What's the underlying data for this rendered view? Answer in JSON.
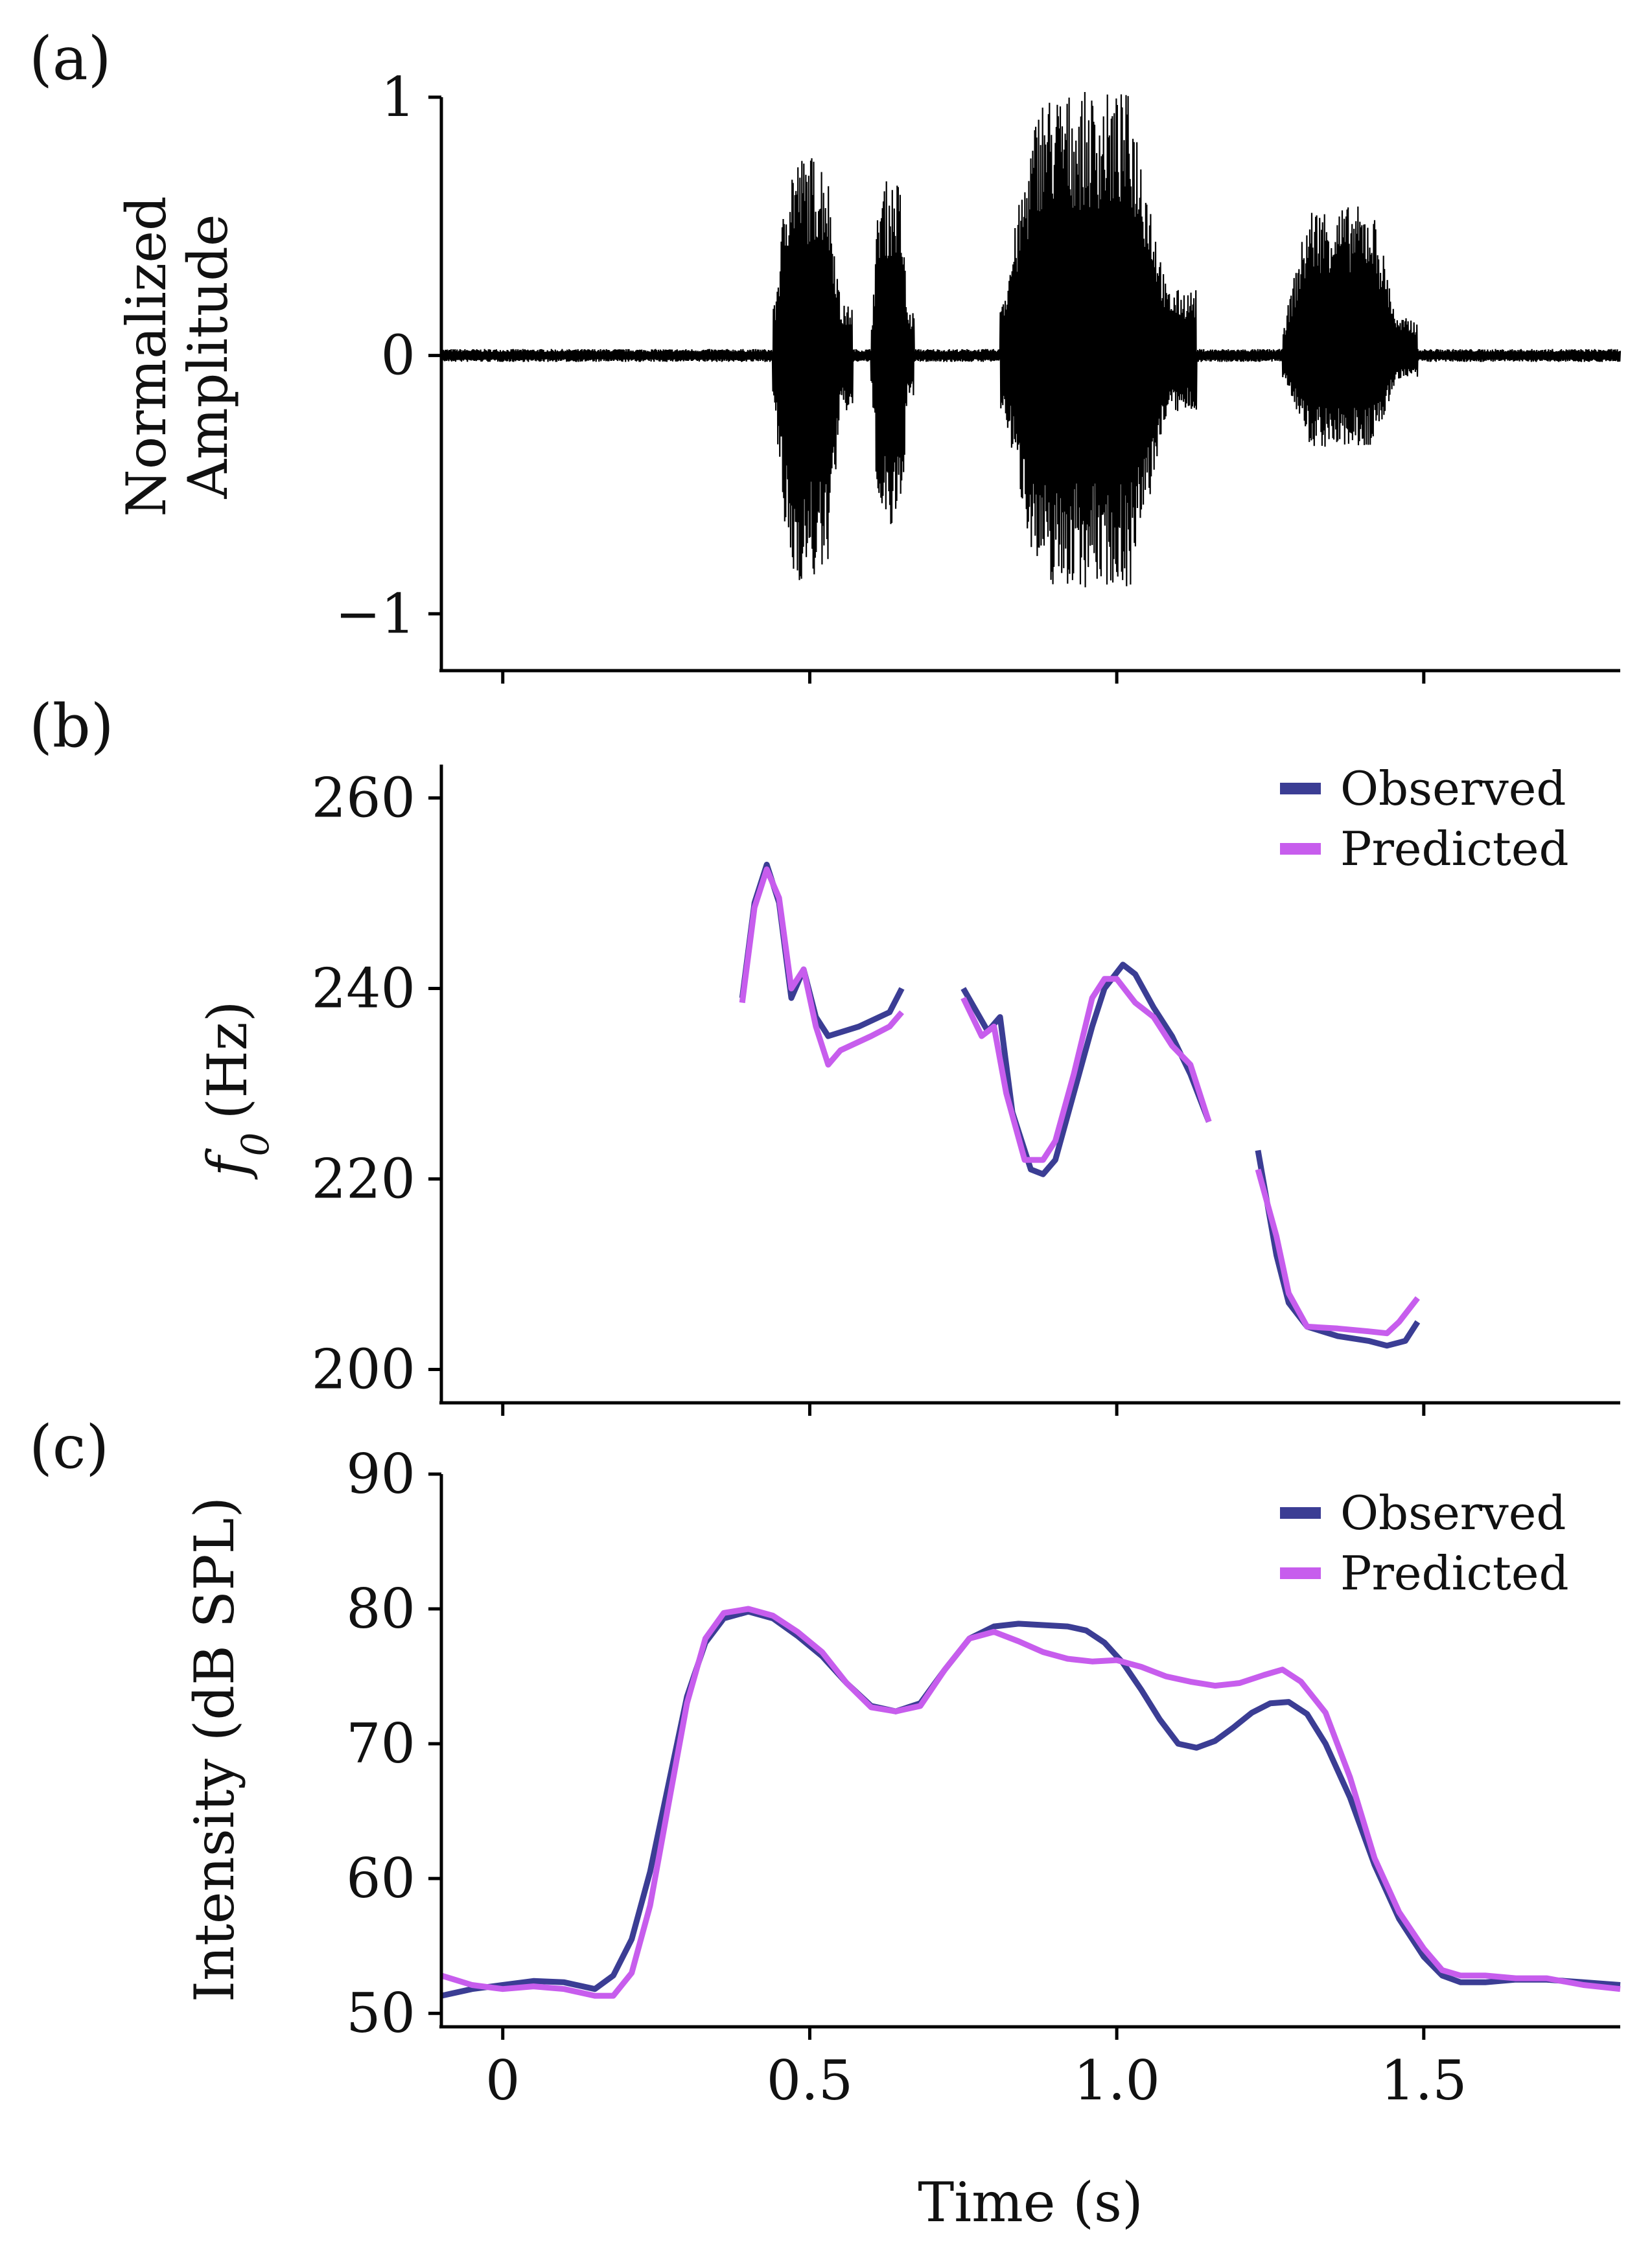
{
  "colors": {
    "observed": "#3b3d94",
    "predicted": "#c75ded",
    "waveform": "#000000",
    "axis": "#000000"
  },
  "chart_data": [
    {
      "panel": "(a)",
      "type": "line",
      "ylabel_line1": "Normalized",
      "ylabel_line2": "Amplitude",
      "xlim": [
        -0.1,
        1.82
      ],
      "ylim": [
        -1.22,
        1.0
      ],
      "yticks": [
        1,
        0,
        -1
      ],
      "ytick_labels": [
        "1",
        "0",
        "−1"
      ],
      "xticks": [
        0,
        0.5,
        1.0,
        1.5
      ],
      "segments": [
        {
          "t0": 0.44,
          "t1": 0.57,
          "peak_top": 0.78,
          "peak_bottom": -0.88
        },
        {
          "t0": 0.6,
          "t1": 0.67,
          "peak_top": 0.68,
          "peak_bottom": -0.7
        },
        {
          "t0": 0.81,
          "t1": 1.13,
          "peak_top": 1.02,
          "peak_bottom": -0.9
        },
        {
          "t0": 1.27,
          "t1": 1.49,
          "peak_top": 0.58,
          "peak_bottom": -0.36
        }
      ],
      "noise_level": 0.025
    },
    {
      "panel": "(b)",
      "type": "line",
      "ylabel": "(Hz)",
      "ylabel_symbol": "f",
      "ylabel_subscript": "0",
      "xlim": [
        -0.1,
        1.82
      ],
      "ylim": [
        196.5,
        263.5
      ],
      "yticks": [
        260,
        240,
        220,
        200
      ],
      "ytick_labels": [
        "260",
        "240",
        "220",
        "200"
      ],
      "xticks": [
        0,
        0.5,
        1.0,
        1.5
      ],
      "legend": [
        "Observed",
        "Predicted"
      ],
      "series": [
        {
          "name": "Observed",
          "segments": [
            [
              [
                0.39,
                239
              ],
              [
                0.41,
                249
              ],
              [
                0.43,
                253
              ],
              [
                0.45,
                249
              ],
              [
                0.47,
                239
              ],
              [
                0.49,
                242
              ],
              [
                0.51,
                237
              ],
              [
                0.53,
                235
              ],
              [
                0.58,
                236
              ],
              [
                0.63,
                237.5
              ],
              [
                0.65,
                240
              ]
            ],
            [
              [
                0.75,
                240
              ],
              [
                0.79,
                235.5
              ],
              [
                0.81,
                237
              ],
              [
                0.83,
                227
              ],
              [
                0.86,
                221
              ],
              [
                0.88,
                220.5
              ],
              [
                0.9,
                222
              ],
              [
                0.93,
                229
              ],
              [
                0.96,
                236
              ],
              [
                0.98,
                240
              ],
              [
                1.01,
                242.5
              ],
              [
                1.03,
                241.5
              ],
              [
                1.06,
                238
              ],
              [
                1.09,
                235
              ],
              [
                1.12,
                231
              ],
              [
                1.15,
                226
              ]
            ],
            [
              [
                1.23,
                223
              ],
              [
                1.26,
                212
              ],
              [
                1.28,
                207
              ],
              [
                1.31,
                204.5
              ],
              [
                1.36,
                203.5
              ],
              [
                1.41,
                203
              ],
              [
                1.44,
                202.5
              ],
              [
                1.47,
                203
              ],
              [
                1.49,
                205
              ]
            ]
          ]
        },
        {
          "name": "Predicted",
          "segments": [
            [
              [
                0.39,
                238.5
              ],
              [
                0.41,
                248.5
              ],
              [
                0.43,
                252.5
              ],
              [
                0.45,
                249.5
              ],
              [
                0.47,
                240
              ],
              [
                0.49,
                242
              ],
              [
                0.51,
                236
              ],
              [
                0.53,
                232
              ],
              [
                0.55,
                233.5
              ],
              [
                0.6,
                235
              ],
              [
                0.63,
                236
              ],
              [
                0.65,
                237.5
              ]
            ],
            [
              [
                0.75,
                239
              ],
              [
                0.78,
                235
              ],
              [
                0.8,
                236
              ],
              [
                0.82,
                229
              ],
              [
                0.85,
                222
              ],
              [
                0.88,
                222
              ],
              [
                0.9,
                224
              ],
              [
                0.93,
                231
              ],
              [
                0.96,
                239
              ],
              [
                0.98,
                241
              ],
              [
                1.0,
                241
              ],
              [
                1.03,
                238.5
              ],
              [
                1.06,
                237
              ],
              [
                1.09,
                234
              ],
              [
                1.12,
                232
              ],
              [
                1.15,
                226
              ]
            ],
            [
              [
                1.23,
                221
              ],
              [
                1.26,
                214
              ],
              [
                1.28,
                208
              ],
              [
                1.31,
                204.5
              ],
              [
                1.36,
                204.3
              ],
              [
                1.41,
                204
              ],
              [
                1.44,
                203.8
              ],
              [
                1.46,
                205
              ],
              [
                1.49,
                207.5
              ]
            ]
          ]
        }
      ]
    },
    {
      "panel": "(c)",
      "type": "line",
      "xlabel": "Time (s)",
      "ylabel": "Intensity (dB SPL)",
      "xlim": [
        -0.1,
        1.82
      ],
      "ylim": [
        49.0,
        90.0
      ],
      "yticks": [
        90,
        80,
        70,
        60,
        50
      ],
      "ytick_labels": [
        "90",
        "80",
        "70",
        "60",
        "50"
      ],
      "xticks": [
        0,
        0.5,
        1.0,
        1.5
      ],
      "xtick_labels": [
        "0",
        "0.5",
        "1.0",
        "1.5"
      ],
      "legend": [
        "Observed",
        "Predicted"
      ],
      "series": [
        {
          "name": "Observed",
          "points": [
            [
              -0.1,
              51.3
            ],
            [
              -0.05,
              51.8
            ],
            [
              0.0,
              52.1
            ],
            [
              0.05,
              52.4
            ],
            [
              0.1,
              52.3
            ],
            [
              0.15,
              51.8
            ],
            [
              0.18,
              52.8
            ],
            [
              0.21,
              55.5
            ],
            [
              0.24,
              60.5
            ],
            [
              0.27,
              67
            ],
            [
              0.3,
              73.5
            ],
            [
              0.33,
              77.5
            ],
            [
              0.36,
              79.3
            ],
            [
              0.4,
              79.8
            ],
            [
              0.44,
              79.3
            ],
            [
              0.48,
              78
            ],
            [
              0.52,
              76.5
            ],
            [
              0.56,
              74.5
            ],
            [
              0.6,
              72.8
            ],
            [
              0.64,
              72.4
            ],
            [
              0.68,
              73
            ],
            [
              0.72,
              75.5
            ],
            [
              0.76,
              77.8
            ],
            [
              0.8,
              78.7
            ],
            [
              0.84,
              78.9
            ],
            [
              0.88,
              78.8
            ],
            [
              0.92,
              78.7
            ],
            [
              0.95,
              78.4
            ],
            [
              0.98,
              77.5
            ],
            [
              1.01,
              76
            ],
            [
              1.04,
              74
            ],
            [
              1.07,
              71.8
            ],
            [
              1.1,
              70
            ],
            [
              1.13,
              69.7
            ],
            [
              1.16,
              70.2
            ],
            [
              1.19,
              71.2
            ],
            [
              1.22,
              72.3
            ],
            [
              1.25,
              73
            ],
            [
              1.28,
              73.1
            ],
            [
              1.31,
              72.2
            ],
            [
              1.34,
              70
            ],
            [
              1.38,
              66
            ],
            [
              1.42,
              61
            ],
            [
              1.46,
              57
            ],
            [
              1.5,
              54.2
            ],
            [
              1.53,
              52.8
            ],
            [
              1.56,
              52.3
            ],
            [
              1.6,
              52.3
            ],
            [
              1.65,
              52.5
            ],
            [
              1.7,
              52.5
            ],
            [
              1.76,
              52.3
            ],
            [
              1.82,
              52.1
            ]
          ]
        },
        {
          "name": "Predicted",
          "points": [
            [
              -0.1,
              52.8
            ],
            [
              -0.05,
              52.1
            ],
            [
              0.0,
              51.8
            ],
            [
              0.05,
              52
            ],
            [
              0.1,
              51.8
            ],
            [
              0.15,
              51.3
            ],
            [
              0.18,
              51.3
            ],
            [
              0.21,
              53
            ],
            [
              0.24,
              58
            ],
            [
              0.27,
              65.5
            ],
            [
              0.3,
              73
            ],
            [
              0.33,
              77.8
            ],
            [
              0.36,
              79.7
            ],
            [
              0.4,
              80
            ],
            [
              0.44,
              79.5
            ],
            [
              0.48,
              78.3
            ],
            [
              0.52,
              76.8
            ],
            [
              0.56,
              74.5
            ],
            [
              0.6,
              72.7
            ],
            [
              0.64,
              72.4
            ],
            [
              0.68,
              72.8
            ],
            [
              0.72,
              75.5
            ],
            [
              0.76,
              77.8
            ],
            [
              0.8,
              78.3
            ],
            [
              0.84,
              77.6
            ],
            [
              0.88,
              76.8
            ],
            [
              0.92,
              76.3
            ],
            [
              0.96,
              76.1
            ],
            [
              1.0,
              76.2
            ],
            [
              1.04,
              75.7
            ],
            [
              1.08,
              75
            ],
            [
              1.12,
              74.6
            ],
            [
              1.16,
              74.3
            ],
            [
              1.2,
              74.5
            ],
            [
              1.24,
              75.1
            ],
            [
              1.27,
              75.5
            ],
            [
              1.3,
              74.6
            ],
            [
              1.34,
              72.3
            ],
            [
              1.38,
              67.5
            ],
            [
              1.42,
              61.5
            ],
            [
              1.46,
              57.5
            ],
            [
              1.5,
              54.8
            ],
            [
              1.53,
              53.2
            ],
            [
              1.56,
              52.8
            ],
            [
              1.6,
              52.8
            ],
            [
              1.65,
              52.6
            ],
            [
              1.7,
              52.6
            ],
            [
              1.76,
              52.1
            ],
            [
              1.82,
              51.8
            ]
          ]
        }
      ]
    }
  ]
}
